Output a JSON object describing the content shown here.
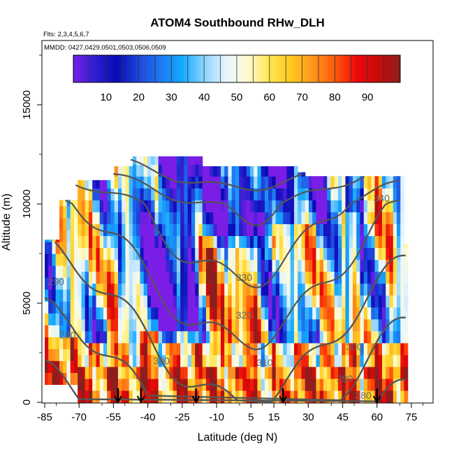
{
  "chart_data": {
    "type": "heatmap",
    "title": "ATOM4 Southbound RHw_DLH",
    "flights_label": "Flts: 2,3,4,5,6,7",
    "dates_label": "MMDD: 0427,0429,0501,0503,0506,0509",
    "xlabel": "Latitude (deg N)",
    "ylabel": "Altitude (m)",
    "xlim": [
      -85,
      85
    ],
    "ylim": [
      0,
      17500
    ],
    "x_ticks": [
      -85,
      -70,
      -55,
      -40,
      -25,
      -10,
      5,
      15,
      30,
      45,
      60,
      75
    ],
    "y_ticks": [
      0,
      5000,
      10000,
      15000
    ],
    "colorbar": {
      "range": [
        0,
        100
      ],
      "ticks": [
        10,
        20,
        30,
        40,
        50,
        60,
        70,
        80,
        90
      ],
      "colors": [
        "#7a1ee6",
        "#2d1fd0",
        "#0a0ab4",
        "#1f46dc",
        "#1e78f0",
        "#14aaff",
        "#8cd2ff",
        "#e6f5ff",
        "#fffbd2",
        "#ffe650",
        "#ffc81e",
        "#ff961e",
        "#ff5a0a",
        "#eb0a0a",
        "#c80a0a",
        "#8c1e1e"
      ]
    },
    "contour_levels": [
      {
        "label": "290",
        "lat": -80,
        "alt": 6100
      },
      {
        "label": "280",
        "lat": -75,
        "alt": 3400
      },
      {
        "label": "300",
        "lat": -34,
        "alt": 2100
      },
      {
        "label": "310",
        "lat": 11,
        "alt": 2000
      },
      {
        "label": "320",
        "lat": 2,
        "alt": 4400
      },
      {
        "label": "330",
        "lat": 2,
        "alt": 6300
      },
      {
        "label": "340",
        "lat": 62,
        "alt": 10300
      },
      {
        "label": "300",
        "lat": 50,
        "alt": 2800
      },
      {
        "label": "290",
        "lat": 46,
        "alt": 1200
      },
      {
        "label": "280",
        "lat": 54,
        "alt": 350
      }
    ],
    "profile_markers_lat": [
      -53,
      -43,
      -19,
      19,
      60
    ]
  }
}
